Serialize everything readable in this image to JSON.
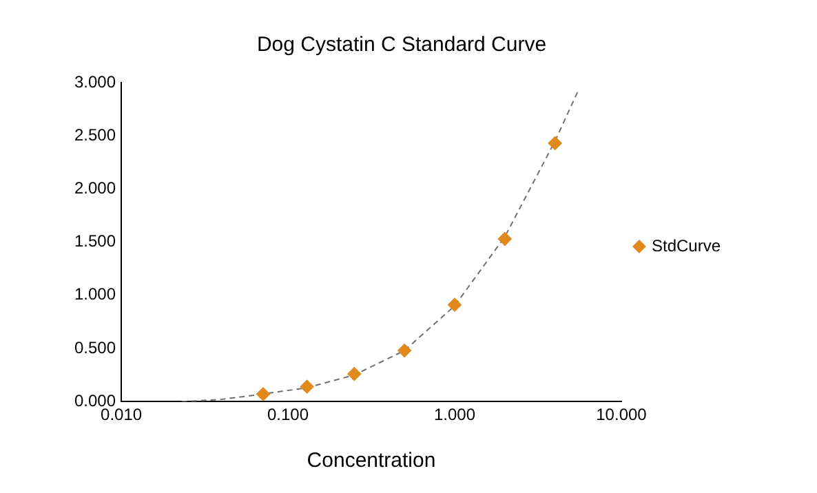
{
  "chart_data": {
    "type": "scatter",
    "title": "Dog Cystatin C Standard Curve",
    "xlabel": "Concentration",
    "log": "x",
    "grid": false,
    "legend": "right",
    "marker": "diamond",
    "xlim": [
      0.01,
      10
    ],
    "xticks": [
      {
        "value": 0.01,
        "label": "0.010"
      },
      {
        "value": 0.1,
        "label": "0.100"
      },
      {
        "value": 1,
        "label": "1.000"
      },
      {
        "value": 10,
        "label": "10.000"
      }
    ],
    "ylim": [
      0,
      3
    ],
    "yticks": [
      {
        "value": 0,
        "label": "0.000"
      },
      {
        "value": 0.5,
        "label": "0.500"
      },
      {
        "value": 1,
        "label": "1.000"
      },
      {
        "value": 1.5,
        "label": "1.500"
      },
      {
        "value": 2,
        "label": "2.000"
      },
      {
        "value": 2.5,
        "label": "2.500"
      },
      {
        "value": 3,
        "label": "3.000"
      }
    ],
    "series": [
      {
        "name": "StdCurve",
        "color": "#e08a1e",
        "x": [
          0.071,
          0.13,
          0.25,
          0.5,
          1,
          2,
          4
        ],
        "values": [
          0.07,
          0.14,
          0.26,
          0.48,
          0.91,
          1.53,
          2.43
        ]
      },
      {
        "type": "line",
        "color": "#707070",
        "line_style": "dashed",
        "marker": "none",
        "x": [
          0.023,
          0.04,
          0.07,
          0.13,
          0.25,
          0.5,
          1,
          2,
          4,
          5.57
        ],
        "values": [
          0,
          0.02,
          0.07,
          0.13,
          0.25,
          0.48,
          0.9,
          1.55,
          2.45,
          2.94
        ]
      }
    ]
  }
}
